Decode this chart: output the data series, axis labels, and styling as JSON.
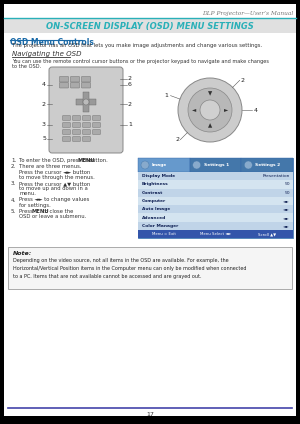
{
  "page_bg": "#000000",
  "content_bg": "#ffffff",
  "header_line_color": "#2ab0b8",
  "header_text": "DLP Projector—User’s Manual",
  "title": "ON-SCREEN DISPLAY (OSD) MENU SETTINGS",
  "title_color": "#2ab0b8",
  "section_title": "OSD Menu Controls",
  "section_title_color": "#1a6aa8",
  "subsection_title": "Navigating the OSD",
  "body_text_color": "#333333",
  "footer_line_color": "#4444aa",
  "footer_text": "17",
  "osd_rows": [
    [
      "Display Mode",
      "Presentation"
    ],
    [
      "Brightness",
      "50"
    ],
    [
      "Contrast",
      "50"
    ],
    [
      "Computer",
      "◄►"
    ],
    [
      "Auto Image",
      "◄►"
    ],
    [
      "Advanced",
      "◄►"
    ],
    [
      "Color Manager",
      "◄►"
    ]
  ],
  "osd_footer": [
    "Menu = Exit",
    "Menu Select ◄►",
    "Scroll ▲▼"
  ],
  "bullet_items": [
    [
      "To enter the OSD, press the",
      "MENU",
      " button."
    ],
    [
      "There are three menus.",
      "Press the cursor ◄► button",
      "to move through the menus."
    ],
    [
      "Press the cursor ▲▼ button",
      "to move up and down in a",
      "menu."
    ],
    [
      "Press ◄► to change values",
      "for settings."
    ],
    [
      "Press ",
      "MENU",
      " to close the",
      "OSD or leave a submenu."
    ]
  ]
}
